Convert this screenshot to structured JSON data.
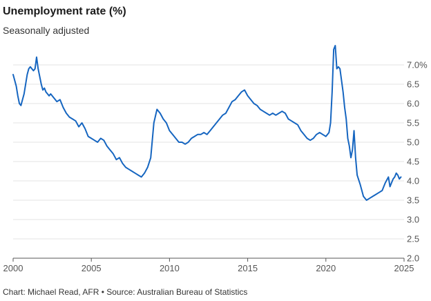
{
  "header": {
    "title": "Unemployment rate (%)",
    "subtitle": "Seasonally adjusted"
  },
  "footer": {
    "source": "Chart: Michael Read, AFR • Source: Australian Bureau of Statistics"
  },
  "colors": {
    "line": "#1565c0",
    "grid": "#e3e3e3",
    "axis": "#555555"
  },
  "chart_data": {
    "type": "line",
    "title": "Unemployment rate (%)",
    "subtitle": "Seasonally adjusted",
    "xlabel": "",
    "ylabel": "",
    "xlim": [
      2000,
      2025
    ],
    "ylim": [
      2.0,
      7.5
    ],
    "y_axis_side": "right",
    "grid": "horizontal",
    "x_ticks": [
      {
        "value": 2000,
        "label": "2000"
      },
      {
        "value": 2005,
        "label": "2005"
      },
      {
        "value": 2010,
        "label": "2010"
      },
      {
        "value": 2015,
        "label": "2015"
      },
      {
        "value": 2020,
        "label": "2020"
      },
      {
        "value": 2025,
        "label": "2025"
      }
    ],
    "y_ticks": [
      {
        "value": 2.0,
        "label": "2.0"
      },
      {
        "value": 2.5,
        "label": "2.5"
      },
      {
        "value": 3.0,
        "label": "3.0"
      },
      {
        "value": 3.5,
        "label": "3.5"
      },
      {
        "value": 4.0,
        "label": "4.0"
      },
      {
        "value": 4.5,
        "label": "4.5"
      },
      {
        "value": 5.0,
        "label": "5.0"
      },
      {
        "value": 5.5,
        "label": "5.5"
      },
      {
        "value": 6.0,
        "label": "6.0"
      },
      {
        "value": 6.5,
        "label": "6.5"
      },
      {
        "value": 7.0,
        "label": "7.0%"
      }
    ],
    "series": [
      {
        "x": [
          2000.0,
          2000.1,
          2000.2,
          2000.3,
          2000.4,
          2000.5,
          2000.6,
          2000.7,
          2000.8,
          2000.9,
          2001.0,
          2001.1,
          2001.2,
          2001.3,
          2001.4,
          2001.5,
          2001.6,
          2001.7,
          2001.8,
          2001.9,
          2002.0,
          2002.1,
          2002.2,
          2002.3,
          2002.4,
          2002.6,
          2002.8,
          2003.0,
          2003.2,
          2003.4,
          2003.6,
          2003.8,
          2004.0,
          2004.2,
          2004.4,
          2004.6,
          2004.8,
          2005.0,
          2005.2,
          2005.4,
          2005.6,
          2005.8,
          2006.0,
          2006.2,
          2006.4,
          2006.6,
          2006.8,
          2007.0,
          2007.2,
          2007.4,
          2007.6,
          2007.8,
          2008.0,
          2008.2,
          2008.4,
          2008.6,
          2008.8,
          2009.0,
          2009.2,
          2009.4,
          2009.6,
          2009.8,
          2010.0,
          2010.2,
          2010.4,
          2010.6,
          2010.8,
          2011.0,
          2011.2,
          2011.4,
          2011.6,
          2011.8,
          2012.0,
          2012.2,
          2012.4,
          2012.6,
          2012.8,
          2013.0,
          2013.2,
          2013.4,
          2013.6,
          2013.8,
          2014.0,
          2014.2,
          2014.4,
          2014.6,
          2014.8,
          2015.0,
          2015.2,
          2015.4,
          2015.6,
          2015.8,
          2016.0,
          2016.2,
          2016.4,
          2016.6,
          2016.8,
          2017.0,
          2017.2,
          2017.4,
          2017.6,
          2017.8,
          2018.0,
          2018.2,
          2018.4,
          2018.6,
          2018.8,
          2019.0,
          2019.2,
          2019.4,
          2019.6,
          2019.8,
          2020.0,
          2020.2,
          2020.3,
          2020.4,
          2020.5,
          2020.6,
          2020.7,
          2020.8,
          2020.9,
          2021.0,
          2021.1,
          2021.2,
          2021.3,
          2021.4,
          2021.5,
          2021.6,
          2021.7,
          2021.8,
          2021.9,
          2022.0,
          2022.2,
          2022.4,
          2022.6,
          2022.8,
          2023.0,
          2023.2,
          2023.4,
          2023.6,
          2023.8,
          2024.0,
          2024.1,
          2024.2,
          2024.3,
          2024.4,
          2024.5,
          2024.6,
          2024.7,
          2024.8
        ],
        "values": [
          6.75,
          6.6,
          6.45,
          6.2,
          6.0,
          5.95,
          6.1,
          6.25,
          6.5,
          6.75,
          6.9,
          6.95,
          6.9,
          6.85,
          6.9,
          7.2,
          6.9,
          6.7,
          6.5,
          6.35,
          6.4,
          6.3,
          6.25,
          6.2,
          6.25,
          6.15,
          6.05,
          6.1,
          5.9,
          5.75,
          5.65,
          5.6,
          5.55,
          5.4,
          5.5,
          5.35,
          5.15,
          5.1,
          5.05,
          5.0,
          5.1,
          5.05,
          4.9,
          4.8,
          4.7,
          4.55,
          4.6,
          4.45,
          4.35,
          4.3,
          4.25,
          4.2,
          4.15,
          4.1,
          4.2,
          4.35,
          4.6,
          5.5,
          5.85,
          5.75,
          5.6,
          5.5,
          5.3,
          5.2,
          5.1,
          5.0,
          5.0,
          4.95,
          5.0,
          5.1,
          5.15,
          5.2,
          5.2,
          5.25,
          5.2,
          5.3,
          5.4,
          5.5,
          5.6,
          5.7,
          5.75,
          5.9,
          6.05,
          6.1,
          6.2,
          6.3,
          6.35,
          6.2,
          6.1,
          6.0,
          5.95,
          5.85,
          5.8,
          5.75,
          5.7,
          5.75,
          5.7,
          5.75,
          5.8,
          5.75,
          5.6,
          5.55,
          5.5,
          5.45,
          5.3,
          5.2,
          5.1,
          5.05,
          5.1,
          5.2,
          5.25,
          5.2,
          5.15,
          5.25,
          5.5,
          6.3,
          7.4,
          7.5,
          6.9,
          6.95,
          6.9,
          6.6,
          6.3,
          5.9,
          5.6,
          5.1,
          4.9,
          4.6,
          4.8,
          5.3,
          4.6,
          4.15,
          3.9,
          3.6,
          3.5,
          3.55,
          3.6,
          3.65,
          3.7,
          3.75,
          3.95,
          4.1,
          3.85,
          3.95,
          4.05,
          4.1,
          4.2,
          4.15,
          4.05,
          4.1
        ]
      }
    ]
  }
}
